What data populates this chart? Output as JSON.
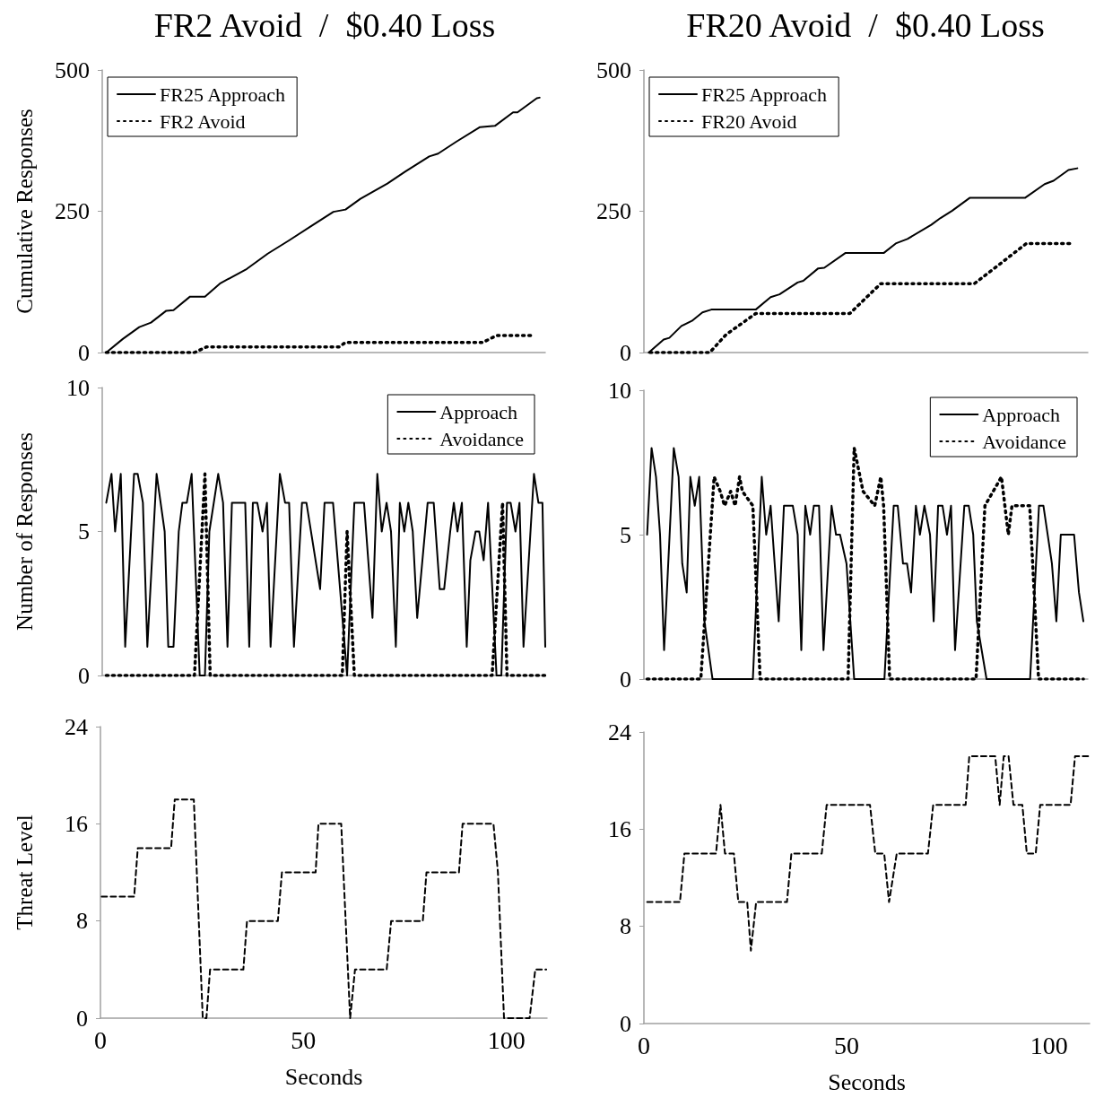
{
  "chart_data": [
    {
      "type": "line",
      "title": "FR2 Avoid  /  $0.40 Loss",
      "ylabel": "Cumulative Responses",
      "xlim": [
        0,
        110
      ],
      "ylim": [
        0,
        500
      ],
      "yticks": [
        0,
        250,
        500
      ],
      "tick_labels": "y",
      "legend": "top left",
      "series": [
        {
          "name": "FR25 Approach",
          "color": "#000000",
          "line_style": "solid",
          "x": [
            1.0,
            5.1,
            9.2,
            12.1,
            15.9,
            17.7,
            21.8,
            25.5,
            29.2,
            35.9,
            41.1,
            46.3,
            51.5,
            57.4,
            60.4,
            64.1,
            70.8,
            75.2,
            81.2,
            83.4,
            87.9,
            93.8,
            97.5,
            102.0,
            103.1,
            107.9,
            108.6
          ],
          "values": [
            0,
            24,
            45,
            53,
            74,
            75,
            99,
            99,
            122,
            148,
            175,
            198,
            222,
            249,
            253,
            272,
            299,
            320,
            347,
            352,
            373,
            399,
            401,
            425,
            425,
            450,
            451
          ]
        },
        {
          "name": "FR2 Avoid",
          "color": "#000000",
          "line_style": "dotted",
          "x": [
            1.0,
            22.9,
            25.9,
            58.9,
            60.4,
            94.5,
            97.9,
            106.4
          ],
          "values": [
            0,
            0,
            10,
            10,
            18,
            18,
            30,
            30
          ]
        }
      ]
    },
    {
      "type": "line",
      "title": "FR20 Avoid  /  $0.40 Loss",
      "xlim": [
        0,
        110
      ],
      "ylim": [
        0,
        500
      ],
      "yticks": [
        0,
        250,
        500
      ],
      "tick_labels": "y",
      "legend": "top left",
      "series": [
        {
          "name": "FR25 Approach",
          "color": "#000000",
          "line_style": "solid",
          "x": [
            1.2,
            4.9,
            6.3,
            9.3,
            11.9,
            14.5,
            16.7,
            27.7,
            31.4,
            33.6,
            38.1,
            39.5,
            43.2,
            44.7,
            49.9,
            59.4,
            62.4,
            65.3,
            71.2,
            73.5,
            76.4,
            80.8,
            94.5,
            99.3,
            101.5,
            105.2,
            107.4
          ],
          "values": [
            0,
            23,
            26,
            47,
            56,
            71,
            76,
            76,
            98,
            103,
            124,
            127,
            149,
            150,
            176,
            176,
            193,
            201,
            226,
            238,
            251,
            274,
            274,
            298,
            304,
            323,
            326
          ]
        },
        {
          "name": "FR20 Avoid",
          "color": "#000000",
          "line_style": "dotted",
          "x": [
            1.5,
            16.3,
            20.4,
            27.7,
            51.0,
            58.7,
            81.9,
            94.8,
            105.9
          ],
          "values": [
            0,
            0,
            32,
            69,
            69,
            122,
            122,
            193,
            193
          ]
        }
      ]
    },
    {
      "type": "line",
      "ylabel": "Number of Responses",
      "xlim": [
        0,
        110
      ],
      "ylim": [
        0,
        10
      ],
      "yticks": [
        0,
        5,
        10
      ],
      "tick_labels": "y",
      "legend": "top right",
      "series": [
        {
          "name": "Approach",
          "color": "#000000",
          "line_style": "solid",
          "x": [
            1.0,
            2.3,
            3.2,
            4.6,
            5.7,
            7.9,
            8.8,
            10.1,
            11.2,
            13.5,
            15.5,
            16.4,
            17.7,
            19.0,
            19.9,
            21.0,
            22.2,
            24.2,
            25.5,
            26.6,
            28.8,
            30.0,
            31.1,
            32.2,
            35.5,
            36.5,
            37.4,
            38.5,
            39.8,
            40.9,
            41.8,
            44.1,
            45.4,
            46.4,
            47.6,
            49.6,
            50.7,
            54.1,
            55.2,
            57.3,
            60.8,
            62.6,
            65.0,
            67.1,
            68.3,
            69.4,
            70.6,
            71.7,
            72.9,
            73.9,
            75.0,
            76.0,
            77.1,
            78.2,
            80.8,
            82.3,
            83.8,
            84.9,
            86.4,
            87.3,
            88.2,
            89.3,
            90.5,
            91.4,
            92.7,
            93.6,
            94.7,
            95.8,
            97.9,
            99.1,
            100.5,
            101.4,
            102.6,
            103.6,
            104.6,
            107.2,
            108.3,
            109.3,
            110.0
          ],
          "values": [
            6,
            7,
            5,
            7,
            1,
            7,
            7,
            6,
            1,
            7,
            5,
            1,
            1,
            5,
            6,
            6,
            7,
            0,
            0,
            5,
            7,
            6,
            1,
            6,
            6,
            1,
            6,
            6,
            5,
            6,
            1,
            7,
            6,
            6,
            1,
            6,
            6,
            3,
            6,
            6,
            0,
            6,
            6,
            2,
            7,
            5,
            6,
            5,
            1,
            6,
            5,
            6,
            5,
            2,
            6,
            6,
            3,
            3,
            5,
            6,
            5,
            6,
            1,
            4,
            5,
            5,
            4,
            6,
            0,
            0,
            6,
            6,
            5,
            6,
            1,
            7,
            6,
            6,
            1
          ]
        },
        {
          "name": "Avoidance",
          "color": "#000000",
          "line_style": "dotted",
          "x": [
            1.0,
            22.9,
            25.5,
            26.8,
            59.6,
            60.8,
            62.6,
            96.8,
            99.4,
            100.5,
            110.0
          ],
          "values": [
            0,
            0,
            7,
            0,
            0,
            5,
            0,
            0,
            6,
            0,
            0
          ]
        }
      ]
    },
    {
      "type": "line",
      "xlim": [
        0,
        110
      ],
      "ylim": [
        0,
        10
      ],
      "yticks": [
        0,
        5,
        10
      ],
      "tick_labels": "y",
      "legend": "top right",
      "series": [
        {
          "name": "Approach",
          "color": "#000000",
          "line_style": "solid",
          "x": [
            0.8,
            1.9,
            3.0,
            4.0,
            5.0,
            7.4,
            8.6,
            9.5,
            10.6,
            11.5,
            12.6,
            13.7,
            15.0,
            17.0,
            27.0,
            29.2,
            30.3,
            31.4,
            33.4,
            34.7,
            36.9,
            38.1,
            39.0,
            40.0,
            41.2,
            42.1,
            43.4,
            44.5,
            46.5,
            47.6,
            48.6,
            50.2,
            52.1,
            59.6,
            61.9,
            62.9,
            64.2,
            65.2,
            66.2,
            67.4,
            68.4,
            69.5,
            70.9,
            71.8,
            72.9,
            74.0,
            75.1,
            76.1,
            77.1,
            79.4,
            80.5,
            81.6,
            82.5,
            84.9,
            95.7,
            97.9,
            99.0,
            101.1,
            102.2,
            103.3,
            106.6,
            107.8,
            108.9
          ],
          "values": [
            5,
            8,
            7,
            5,
            1,
            8,
            7,
            4,
            3,
            7,
            6,
            7,
            2,
            0,
            0,
            7,
            5,
            6,
            2,
            6,
            6,
            5,
            1,
            6,
            5,
            6,
            6,
            1,
            6,
            5,
            5,
            4,
            0,
            0,
            6,
            6,
            4,
            4,
            3,
            6,
            5,
            6,
            5,
            2,
            6,
            6,
            5,
            6,
            1,
            6,
            6,
            5,
            2,
            0,
            0,
            6,
            6,
            4,
            2,
            5,
            5,
            3,
            2
          ]
        },
        {
          "name": "Avoidance",
          "color": "#000000",
          "line_style": "dotted",
          "x": [
            0.8,
            14.1,
            17.4,
            18.9,
            20.0,
            21.5,
            22.6,
            23.7,
            24.4,
            27.0,
            28.8,
            50.6,
            52.1,
            54.3,
            57.2,
            58.7,
            59.4,
            60.9,
            82.3,
            84.5,
            88.6,
            90.3,
            91.2,
            95.6,
            97.8,
            108.9
          ],
          "values": [
            0,
            0,
            7,
            6.5,
            6,
            6.5,
            6,
            7,
            6.5,
            6,
            0,
            0,
            8,
            6.5,
            6,
            7,
            6,
            0,
            0,
            6,
            7,
            5,
            6,
            6,
            0,
            0
          ]
        }
      ]
    },
    {
      "type": "line",
      "ylabel": "Threat Level",
      "xlabel": "Seconds",
      "xlim": [
        0,
        110
      ],
      "xticks": [
        0,
        50,
        100
      ],
      "ylim": [
        0,
        24
      ],
      "yticks": [
        0,
        8,
        16,
        24
      ],
      "series": [
        {
          "color": "#000000",
          "line_style": "dashed",
          "x": [
            0.3,
            8.3,
            9.2,
            17.4,
            18.3,
            23.0,
            25.2,
            26.1,
            27.0,
            35.2,
            36.1,
            43.7,
            44.7,
            53.0,
            53.7,
            59.3,
            61.5,
            62.7,
            70.5,
            71.6,
            79.4,
            80.3,
            88.3,
            89.2,
            96.8,
            97.9,
            99.4,
            105.7,
            107.1,
            109.8
          ],
          "values": [
            10,
            10,
            14,
            14,
            18,
            18,
            0,
            0,
            4,
            4,
            8,
            8,
            12,
            12,
            16,
            16,
            0,
            4,
            4,
            8,
            8,
            12,
            12,
            16,
            16,
            12,
            0,
            0,
            4,
            4
          ]
        }
      ]
    },
    {
      "type": "line",
      "xlabel": "Seconds",
      "xlim": [
        0,
        110
      ],
      "xticks": [
        0,
        50,
        100
      ],
      "ylim": [
        0,
        24
      ],
      "yticks": [
        0,
        8,
        16,
        24
      ],
      "series": [
        {
          "color": "#000000",
          "line_style": "dashed",
          "x": [
            0.8,
            8.9,
            10.0,
            17.8,
            18.9,
            20.0,
            22.2,
            23.3,
            25.5,
            26.4,
            27.7,
            35.3,
            36.4,
            43.9,
            45.1,
            55.8,
            57.1,
            59.3,
            60.5,
            62.4,
            70.1,
            71.4,
            79.4,
            80.3,
            86.7,
            87.8,
            88.8,
            90.0,
            91.2,
            93.4,
            94.5,
            96.7,
            97.8,
            105.3,
            106.4,
            110.0
          ],
          "values": [
            10,
            10,
            14,
            14,
            18,
            14,
            14,
            10,
            10,
            6,
            10,
            10,
            14,
            14,
            18,
            18,
            14,
            14,
            10,
            14,
            14,
            18,
            18,
            22,
            22,
            18,
            22,
            22,
            18,
            18,
            14,
            14,
            18,
            18,
            22,
            22
          ]
        }
      ]
    }
  ]
}
